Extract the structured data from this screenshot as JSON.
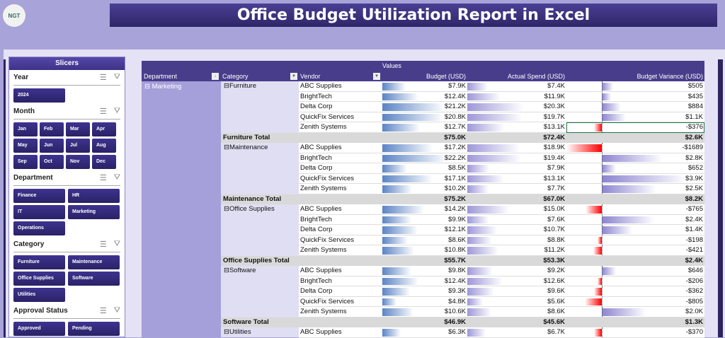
{
  "header": {
    "logo_text": "NGT",
    "title": "Office Budget Utilization Report in Excel"
  },
  "slicers": {
    "title": "Slicers",
    "sections": [
      {
        "name": "Year",
        "items": [
          "2024"
        ]
      },
      {
        "name": "Month",
        "items": [
          "Jan",
          "Feb",
          "Mar",
          "Apr",
          "May",
          "Jun",
          "Jul",
          "Aug",
          "Sep",
          "Oct",
          "Nov",
          "Dec"
        ]
      },
      {
        "name": "Department",
        "items": [
          "Finance",
          "HR",
          "IT",
          "Marketing",
          "Operations"
        ]
      },
      {
        "name": "Category",
        "items": [
          "Furniture",
          "Maintenance",
          "Office Supplies",
          "Software",
          "Utilities"
        ]
      },
      {
        "name": "Approval Status",
        "items": [
          "Approved",
          "Pending"
        ]
      }
    ]
  },
  "pivot": {
    "values_label": "Values",
    "headers": {
      "department": "Department",
      "category": "Category",
      "vendor": "Vendor",
      "budget": "Budget (USD)",
      "actual": "Actual Spend (USD)",
      "variance": "Budget Variance (USD)"
    },
    "department": "⊟ Marketing",
    "colors": {
      "budget_bar": "#5b84c4",
      "actual_bar": "#9d97d8",
      "positive_bar": "#8b84d0",
      "negative_bar": "#ff0000"
    },
    "groups": [
      {
        "category": "Furniture",
        "rows": [
          [
            "ABC Supplies",
            "$7.9K",
            "$7.4K",
            "$505"
          ],
          [
            "BrightTech",
            "$12.4K",
            "$11.9K",
            "$435"
          ],
          [
            "Delta Corp",
            "$21.2K",
            "$20.3K",
            "$884"
          ],
          [
            "QuickFix Services",
            "$20.8K",
            "$19.7K",
            "$1.1K"
          ],
          [
            "Zenith Systems",
            "$12.7K",
            "$13.1K",
            "-$376"
          ]
        ],
        "total": [
          "Furniture Total",
          "$75.0K",
          "$72.4K",
          "$2.6K"
        ]
      },
      {
        "category": "Maintenance",
        "rows": [
          [
            "ABC Supplies",
            "$17.2K",
            "$18.9K",
            "-$1689"
          ],
          [
            "BrightTech",
            "$22.2K",
            "$19.4K",
            "$2.8K"
          ],
          [
            "Delta Corp",
            "$8.5K",
            "$7.9K",
            "$652"
          ],
          [
            "QuickFix Services",
            "$17.1K",
            "$13.1K",
            "$3.9K"
          ],
          [
            "Zenith Systems",
            "$10.2K",
            "$7.7K",
            "$2.5K"
          ]
        ],
        "total": [
          "Maintenance Total",
          "$75.2K",
          "$67.0K",
          "$8.2K"
        ]
      },
      {
        "category": "Office Supplies",
        "rows": [
          [
            "ABC Supplies",
            "$14.2K",
            "$15.0K",
            "-$765"
          ],
          [
            "BrightTech",
            "$9.9K",
            "$7.6K",
            "$2.4K"
          ],
          [
            "Delta Corp",
            "$12.1K",
            "$10.7K",
            "$1.4K"
          ],
          [
            "QuickFix Services",
            "$8.6K",
            "$8.8K",
            "-$198"
          ],
          [
            "Zenith Systems",
            "$10.8K",
            "$11.2K",
            "-$421"
          ]
        ],
        "total": [
          "Office Supplies Total",
          "$55.7K",
          "$53.3K",
          "$2.4K"
        ]
      },
      {
        "category": "Software",
        "rows": [
          [
            "ABC Supplies",
            "$9.8K",
            "$9.2K",
            "$646"
          ],
          [
            "BrightTech",
            "$12.4K",
            "$12.6K",
            "-$206"
          ],
          [
            "Delta Corp",
            "$9.3K",
            "$9.6K",
            "-$362"
          ],
          [
            "QuickFix Services",
            "$4.8K",
            "$5.6K",
            "-$805"
          ],
          [
            "Zenith Systems",
            "$10.6K",
            "$8.6K",
            "$2.0K"
          ]
        ],
        "total": [
          "Software Total",
          "$46.9K",
          "$45.6K",
          "$1.3K"
        ]
      },
      {
        "category": "Utilities",
        "rows": [
          [
            "ABC Supplies",
            "$6.3K",
            "$6.7K",
            "-$370"
          ]
        ]
      }
    ]
  }
}
